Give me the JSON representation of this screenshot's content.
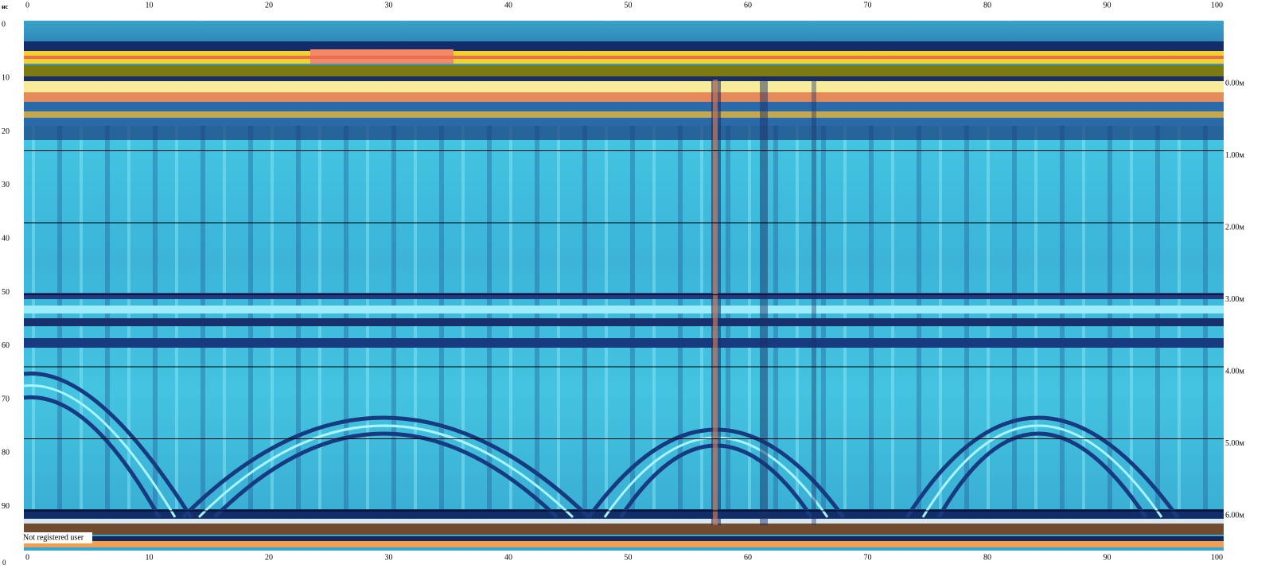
{
  "left_axis": {
    "unit": "нс",
    "ticks": [
      0,
      10,
      20,
      30,
      40,
      50,
      60,
      70,
      80,
      90
    ]
  },
  "top_axis": {
    "ticks": [
      0,
      10,
      20,
      30,
      40,
      50,
      60,
      70,
      80,
      90,
      100
    ]
  },
  "bottom_axis": {
    "ticks": [
      0,
      10,
      20,
      30,
      40,
      50,
      60,
      70,
      80,
      90,
      100
    ]
  },
  "depth_axis": {
    "ticks": [
      "0.00м",
      "1.00м",
      "2.00м",
      "3.00м",
      "4.00м",
      "5.00м",
      "6.00м"
    ]
  },
  "corner_label": "0",
  "watermark": "Not registered user"
}
